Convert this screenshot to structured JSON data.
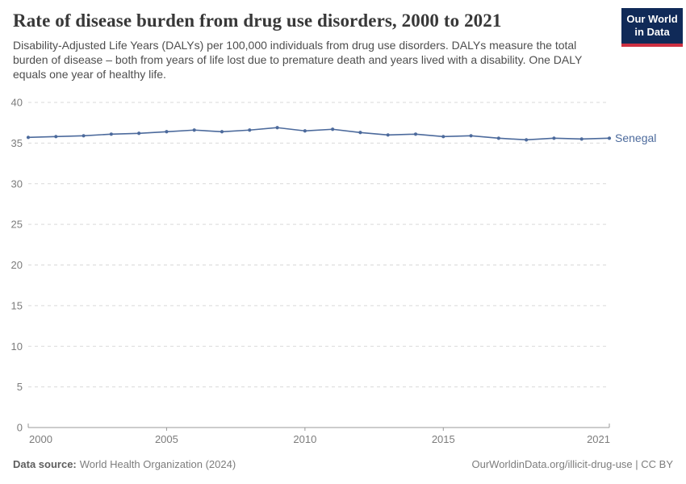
{
  "header": {
    "title": "Rate of disease burden from drug use disorders, 2000 to 2021",
    "subtitle": "Disability-Adjusted Life Years (DALYs) per 100,000 individuals from drug use disorders. DALYs measure the total burden of disease – both from years of life lost due to premature death and years lived with a disability. One DALY equals one year of healthy life.",
    "logo": {
      "line1": "Our World",
      "line2": "in Data",
      "bg_color": "#102a58",
      "bar_color": "#cd3041",
      "text_color": "#ffffff"
    }
  },
  "chart_data": {
    "type": "line",
    "title": "Rate of disease burden from drug use disorders, 2000 to 2021",
    "x": [
      2000,
      2001,
      2002,
      2003,
      2004,
      2005,
      2006,
      2007,
      2008,
      2009,
      2010,
      2011,
      2012,
      2013,
      2014,
      2015,
      2016,
      2017,
      2018,
      2019,
      2020,
      2021
    ],
    "series": [
      {
        "name": "Senegal",
        "color": "#4c6a9c",
        "values": [
          35.7,
          35.8,
          35.9,
          36.1,
          36.2,
          36.4,
          36.6,
          36.4,
          36.6,
          36.9,
          36.5,
          36.7,
          36.3,
          36.0,
          36.1,
          35.8,
          35.9,
          35.6,
          35.4,
          35.6,
          35.5,
          35.6
        ]
      }
    ],
    "xlabel": "",
    "ylabel": "",
    "ylim": [
      0,
      40
    ],
    "yticks": [
      0,
      5,
      10,
      15,
      20,
      25,
      30,
      35,
      40
    ],
    "xticks": [
      2000,
      2005,
      2010,
      2015,
      2021
    ],
    "grid": "horizontal-dashed",
    "legend": "inline-end-label",
    "axis_color": "#999999",
    "gridline_color": "#d9d9d9",
    "tick_label_color": "#7c7c7c"
  },
  "footer": {
    "data_source_label": "Data source:",
    "data_source_value": "World Health Organization (2024)",
    "attribution": "OurWorldinData.org/illicit-drug-use | CC BY"
  }
}
